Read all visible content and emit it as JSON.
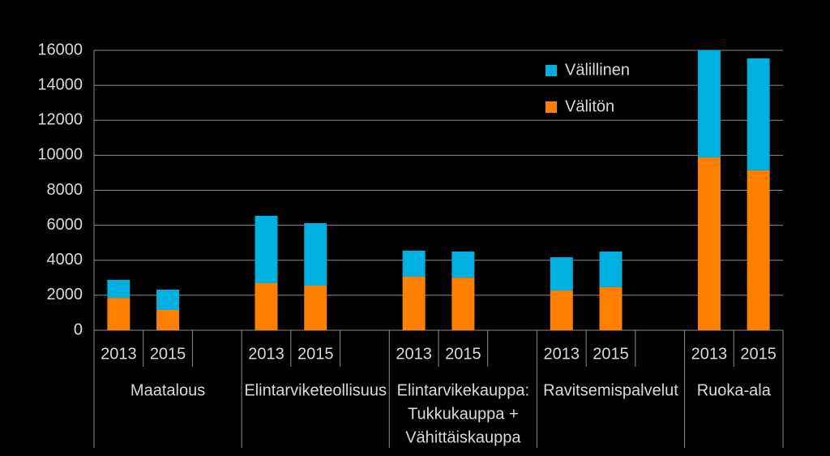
{
  "chart_data": {
    "type": "stacked-bar",
    "categories": [
      "2013",
      "2015",
      null,
      "2013",
      "2015",
      null,
      "2013",
      "2015",
      null,
      "2013",
      "2015",
      null,
      "2013",
      "2015"
    ],
    "groups": [
      [
        "Maatalous"
      ],
      [
        "Elintarviketeollisuus"
      ],
      [
        "Elintarvikekauppa:",
        "Tukkukauppa +",
        "Vähittäiskauppa"
      ],
      [
        "Ravitsemispalvelut"
      ],
      [
        "Ruoka-ala"
      ]
    ],
    "series": [
      {
        "name": "Välitön",
        "color": "#ff8000",
        "values": [
          1850,
          1160,
          null,
          2690,
          2550,
          null,
          3060,
          3010,
          null,
          2270,
          2460,
          null,
          9880,
          9140
        ]
      },
      {
        "name": "Välillinen",
        "color": "#00b0e0",
        "values": [
          1030,
          1160,
          null,
          3850,
          3570,
          null,
          1490,
          1490,
          null,
          1900,
          2040,
          null,
          6120,
          6400
        ]
      }
    ],
    "ylim": [
      0,
      16000
    ],
    "yticks": [
      0,
      2000,
      4000,
      6000,
      8000,
      10000,
      12000,
      14000,
      16000
    ],
    "grid": true
  }
}
